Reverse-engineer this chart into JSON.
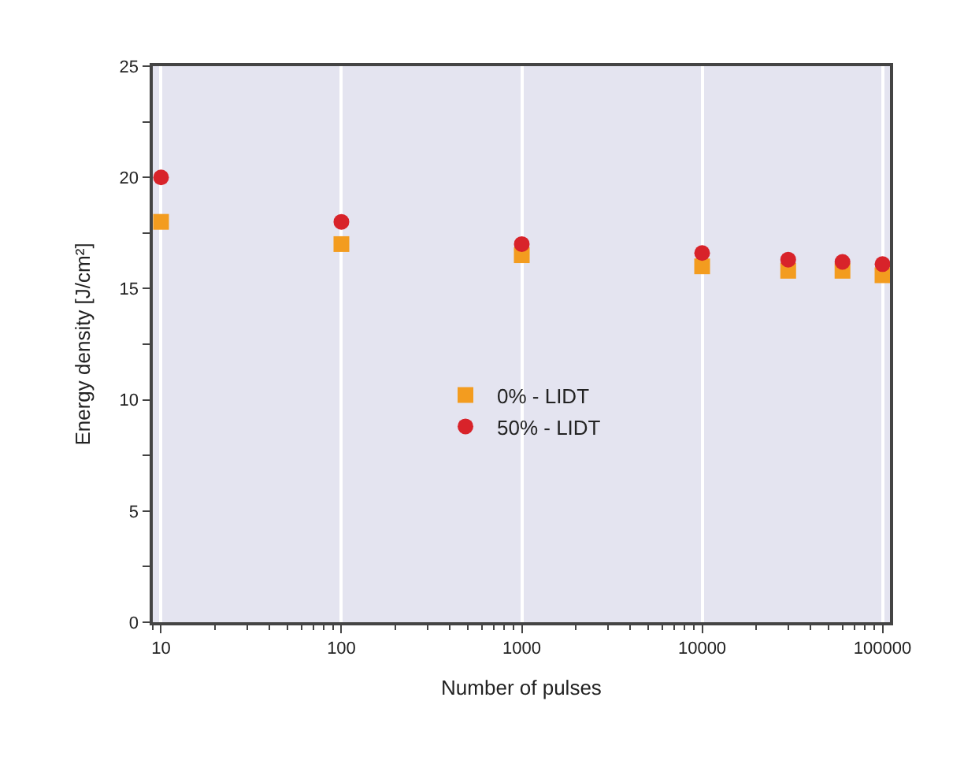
{
  "chart_data": {
    "type": "scatter",
    "xlabel": "Number of pulses",
    "ylabel": "Energy density [J/cm²]",
    "log": "x",
    "xlim": [
      9,
      110000
    ],
    "ylim": [
      0,
      25
    ],
    "xticks": [
      10,
      100,
      1000,
      10000,
      100000
    ],
    "yticks": [
      0,
      {
        "value": 2.5,
        "label": null
      },
      5,
      {
        "value": 7.5,
        "label": null
      },
      10,
      {
        "value": 12.5,
        "label": null
      },
      15,
      {
        "value": 17.5,
        "label": null
      },
      20,
      {
        "value": 22.5,
        "label": null
      },
      25
    ],
    "grid": "x",
    "legend": "center",
    "series": [
      {
        "name": "0% - LIDT",
        "color": "#f39c1f",
        "marker": "square",
        "x": [
          10,
          100,
          1000,
          10000,
          30000,
          60000,
          100000
        ],
        "values": [
          18,
          17,
          16.5,
          16,
          15.8,
          15.8,
          15.6
        ]
      },
      {
        "name": "50% - LIDT",
        "color": "#d8232a",
        "marker": "circle",
        "x": [
          10,
          100,
          1000,
          10000,
          30000,
          60000,
          100000
        ],
        "values": [
          20,
          18,
          17,
          16.6,
          16.3,
          16.2,
          16.1
        ]
      }
    ]
  }
}
